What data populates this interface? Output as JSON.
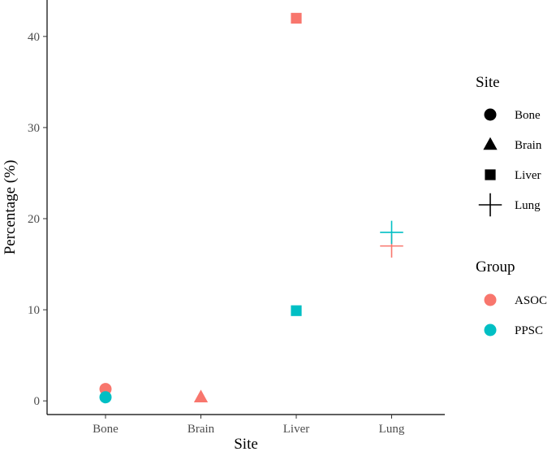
{
  "chart_data": {
    "type": "scatter",
    "title": "",
    "xlabel": "Site",
    "ylabel": "Percentage (%)",
    "categories": [
      "Bone",
      "Brain",
      "Liver",
      "Lung"
    ],
    "yticks": [
      "0",
      "10",
      "20",
      "30",
      "40"
    ],
    "ylim": [
      -1.5,
      44
    ],
    "grid": false,
    "series": [
      {
        "name": "ASOC",
        "color": "#F8766D",
        "points": [
          {
            "site": "Bone",
            "shape": "circle",
            "y": 1.3
          },
          {
            "site": "Brain",
            "shape": "triangle",
            "y": 0.4
          },
          {
            "site": "Liver",
            "shape": "square",
            "y": 42.0
          },
          {
            "site": "Lung",
            "shape": "plus",
            "y": 17.0
          }
        ]
      },
      {
        "name": "PPSC",
        "color": "#00BFC4",
        "points": [
          {
            "site": "Bone",
            "shape": "circle",
            "y": 0.4
          },
          {
            "site": "Liver",
            "shape": "square",
            "y": 9.9
          },
          {
            "site": "Lung",
            "shape": "plus",
            "y": 18.5
          }
        ]
      }
    ],
    "legend": {
      "placement": "right",
      "shape_title": "Site",
      "shapes": [
        {
          "label": "Bone",
          "shape": "circle"
        },
        {
          "label": "Brain",
          "shape": "triangle"
        },
        {
          "label": "Liver",
          "shape": "square"
        },
        {
          "label": "Lung",
          "shape": "plus"
        }
      ],
      "color_title": "Group",
      "colors": [
        {
          "label": "ASOC",
          "color": "#F8766D"
        },
        {
          "label": "PPSC",
          "color": "#00BFC4"
        }
      ]
    }
  }
}
